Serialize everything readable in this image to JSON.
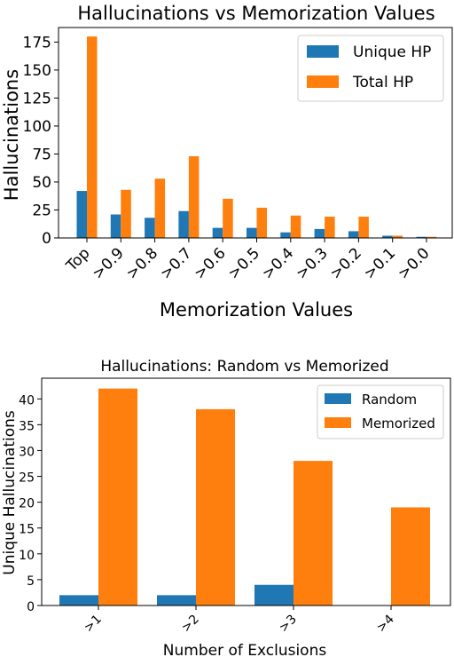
{
  "chart_data": [
    {
      "type": "bar",
      "title": "Hallucinations vs Memorization Values",
      "xlabel": "Memorization Values",
      "ylabel": "Hallucinations",
      "categories": [
        "Top",
        ">0.9",
        ">0.8",
        ">0.7",
        ">0.6",
        ">0.5",
        ">0.4",
        ">0.3",
        ">0.2",
        ">0.1",
        ">0.0"
      ],
      "series": [
        {
          "name": "Unique HP",
          "color": "#1f77b4",
          "values": [
            42,
            21,
            18,
            24,
            9,
            9,
            5,
            8,
            6,
            2,
            1
          ]
        },
        {
          "name": "Total HP",
          "color": "#ff7f0e",
          "values": [
            180,
            43,
            53,
            73,
            35,
            27,
            20,
            19,
            19,
            2,
            1
          ]
        }
      ],
      "ylim": [
        0,
        188
      ],
      "yticks": [
        0,
        25,
        50,
        75,
        100,
        125,
        150,
        175
      ],
      "legend": "top-right",
      "grid": false
    },
    {
      "type": "bar",
      "title": "Hallucinations: Random vs Memorized",
      "xlabel": "Number of Exclusions",
      "ylabel": "Unique Hallucinations",
      "categories": [
        ">1",
        ">2",
        ">3",
        ">4"
      ],
      "series": [
        {
          "name": "Random",
          "color": "#1f77b4",
          "values": [
            2,
            2,
            4,
            0
          ]
        },
        {
          "name": "Memorized",
          "color": "#ff7f0e",
          "values": [
            42,
            38,
            28,
            19
          ]
        }
      ],
      "ylim": [
        0,
        44
      ],
      "yticks": [
        0,
        5,
        10,
        15,
        20,
        25,
        30,
        35,
        40
      ],
      "legend": "top-right",
      "grid": false
    }
  ]
}
